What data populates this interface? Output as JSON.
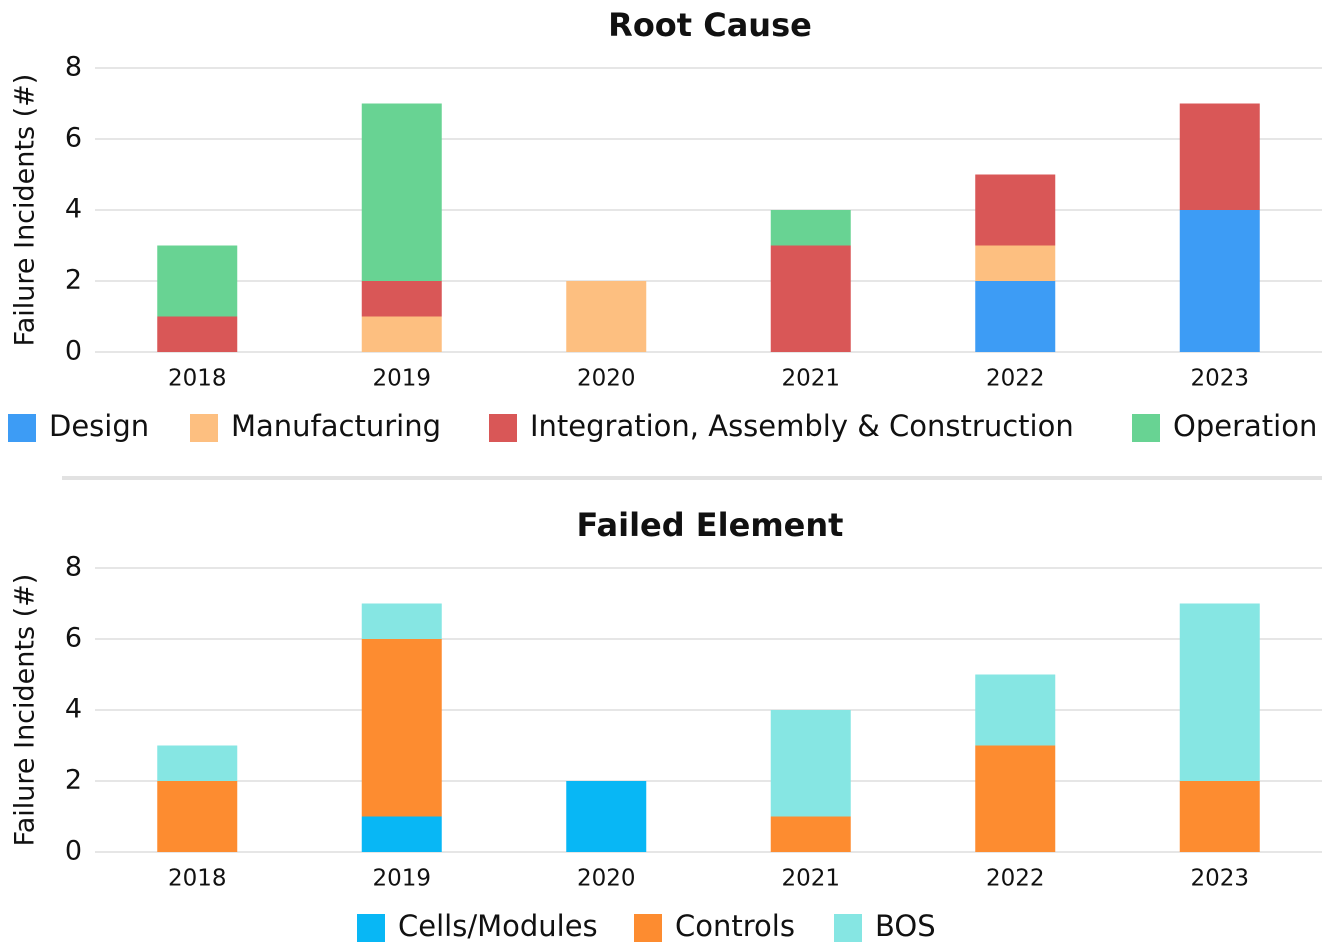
{
  "chart_data": [
    {
      "type": "bar",
      "stacked": true,
      "title": "Root Cause",
      "y_label": "Failure Incidents (#)",
      "categories": [
        "2018",
        "2019",
        "2020",
        "2021",
        "2022",
        "2023"
      ],
      "series": [
        {
          "name": "Design",
          "color": "#3d9cf5",
          "values": [
            0,
            0,
            0,
            0,
            2,
            4
          ]
        },
        {
          "name": "Manufacturing",
          "color": "#fdbf80",
          "values": [
            0,
            1,
            2,
            0,
            1,
            0
          ]
        },
        {
          "name": "Integration, Assembly & Construction",
          "color": "#d95757",
          "values": [
            1,
            1,
            0,
            3,
            2,
            3
          ]
        },
        {
          "name": "Operation",
          "color": "#68d393",
          "values": [
            2,
            5,
            0,
            1,
            0,
            0
          ]
        }
      ],
      "ylim": [
        0,
        8
      ],
      "yticks": [
        0,
        2,
        4,
        6,
        8
      ],
      "grid": true,
      "legend": "bottom"
    },
    {
      "type": "bar",
      "stacked": true,
      "title": "Failed Element",
      "y_label": "Failure Incidents (#)",
      "categories": [
        "2018",
        "2019",
        "2020",
        "2021",
        "2022",
        "2023"
      ],
      "series": [
        {
          "name": "Cells/Modules",
          "color": "#08b7f5",
          "values": [
            0,
            1,
            2,
            0,
            0,
            0
          ]
        },
        {
          "name": "Controls",
          "color": "#fd8c30",
          "values": [
            2,
            5,
            0,
            1,
            3,
            2
          ]
        },
        {
          "name": "BOS",
          "color": "#86e6e3",
          "values": [
            1,
            1,
            0,
            3,
            2,
            5
          ]
        }
      ],
      "ylim": [
        0,
        8
      ],
      "yticks": [
        0,
        2,
        4,
        6,
        8
      ],
      "grid": true,
      "legend": "bottom"
    }
  ]
}
